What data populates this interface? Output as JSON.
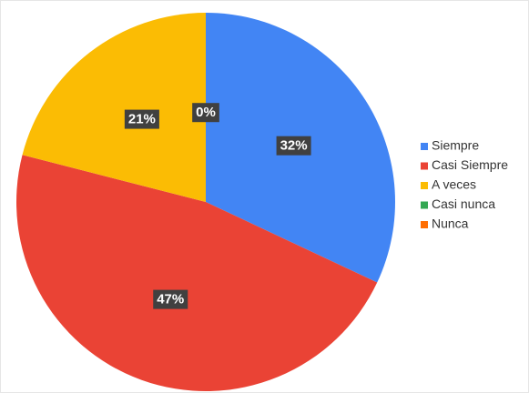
{
  "chart_data": {
    "type": "pie",
    "categories": [
      "Siempre",
      "Casi Siempre",
      "A veces",
      "Casi nunca",
      "Nunca"
    ],
    "values": [
      32,
      47,
      21,
      0,
      0
    ],
    "value_labels": [
      "32%",
      "47%",
      "21%",
      "0%",
      null
    ],
    "colors": [
      "#4285f4",
      "#ea4335",
      "#fbbc04",
      "#34a853",
      "#ff6d01"
    ],
    "legend": "right"
  }
}
